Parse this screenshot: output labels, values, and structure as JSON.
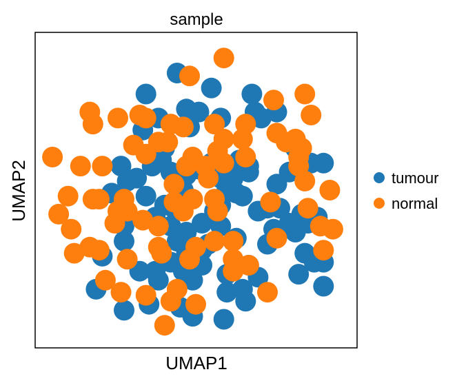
{
  "chart_data": {
    "type": "scatter",
    "title": "sample",
    "xlabel": "UMAP1",
    "ylabel": "UMAP2",
    "xlim": [
      0,
      100
    ],
    "ylim": [
      0,
      100
    ],
    "grid": false,
    "ticks": false,
    "legend_position": "right",
    "series": [
      {
        "name": "tumour",
        "color": "#1f77b4",
        "points": [
          [
            34,
            82
          ],
          [
            44,
            89
          ],
          [
            33,
            70
          ],
          [
            55,
            84
          ],
          [
            48,
            71
          ],
          [
            47,
            77
          ],
          [
            51,
            76
          ],
          [
            38,
            74
          ],
          [
            58,
            74
          ],
          [
            68,
            82
          ],
          [
            69,
            76
          ],
          [
            71,
            74
          ],
          [
            76,
            76
          ],
          [
            26,
            58
          ],
          [
            28,
            53
          ],
          [
            23,
            49
          ],
          [
            39,
            60
          ],
          [
            40,
            64
          ],
          [
            36,
            58
          ],
          [
            42,
            56
          ],
          [
            51,
            57
          ],
          [
            55,
            59
          ],
          [
            47,
            55
          ],
          [
            58,
            54
          ],
          [
            67,
            58
          ],
          [
            62,
            54
          ],
          [
            64,
            60
          ],
          [
            76,
            52
          ],
          [
            80,
            56
          ],
          [
            82,
            64
          ],
          [
            87,
            59
          ],
          [
            91,
            59
          ],
          [
            89,
            41
          ],
          [
            40,
            45
          ],
          [
            37,
            41
          ],
          [
            42,
            38
          ],
          [
            43,
            44
          ],
          [
            34,
            48
          ],
          [
            31,
            54
          ],
          [
            46,
            50
          ],
          [
            27,
            38
          ],
          [
            27,
            33
          ],
          [
            20,
            28
          ],
          [
            42,
            26
          ],
          [
            47,
            29
          ],
          [
            44,
            33
          ],
          [
            47,
            36
          ],
          [
            52,
            39
          ],
          [
            54,
            32
          ],
          [
            56,
            43
          ],
          [
            58,
            38
          ],
          [
            58,
            45
          ],
          [
            63,
            34
          ],
          [
            70,
            43
          ],
          [
            73,
            44
          ],
          [
            75,
            37
          ],
          [
            60,
            51
          ],
          [
            63,
            49
          ],
          [
            67,
            56
          ],
          [
            65,
            48
          ],
          [
            52,
            25
          ],
          [
            49,
            20
          ],
          [
            46,
            23
          ],
          [
            60,
            22
          ],
          [
            65,
            17
          ],
          [
            67,
            25
          ],
          [
            70,
            21
          ],
          [
            73,
            32
          ],
          [
            77,
            44
          ],
          [
            80,
            39
          ],
          [
            84,
            42
          ],
          [
            82,
            36
          ],
          [
            86,
            39
          ],
          [
            85,
            29
          ],
          [
            83,
            22
          ],
          [
            88,
            26
          ],
          [
            91,
            26
          ],
          [
            91,
            18
          ],
          [
            45,
            11
          ],
          [
            49,
            8
          ],
          [
            59,
            7
          ],
          [
            66,
            13
          ],
          [
            60,
            16
          ],
          [
            52,
            30
          ],
          [
            18,
            17
          ],
          [
            35,
            12
          ],
          [
            32,
            23
          ],
          [
            37,
            23
          ],
          [
            38,
            20
          ],
          [
            27,
            10
          ],
          [
            45,
            50
          ],
          [
            43,
            44
          ]
        ]
      },
      {
        "name": "normal",
        "color": "#ff7f0e",
        "points": [
          [
            48,
            88
          ],
          [
            59,
            94
          ],
          [
            85,
            82
          ],
          [
            87,
            75
          ],
          [
            66,
            72
          ],
          [
            56,
            72
          ],
          [
            59,
            67
          ],
          [
            65,
            67
          ],
          [
            66,
            61
          ],
          [
            76,
            69
          ],
          [
            79,
            66
          ],
          [
            83,
            61
          ],
          [
            17,
            72
          ],
          [
            25,
            74
          ],
          [
            32,
            75
          ],
          [
            34,
            74
          ],
          [
            42,
            72
          ],
          [
            46,
            71
          ],
          [
            30,
            65
          ],
          [
            38,
            66
          ],
          [
            34,
            62
          ],
          [
            47,
            58
          ],
          [
            49,
            61
          ],
          [
            53,
            58
          ],
          [
            54,
            54
          ],
          [
            43,
            52
          ],
          [
            49,
            47
          ],
          [
            4,
            61
          ],
          [
            13,
            58
          ],
          [
            20,
            58
          ],
          [
            27,
            47
          ],
          [
            25,
            43
          ],
          [
            17,
            47
          ],
          [
            9,
            48
          ],
          [
            6,
            42
          ],
          [
            10,
            37
          ],
          [
            11,
            29
          ],
          [
            16,
            31
          ],
          [
            38,
            31
          ],
          [
            39,
            29
          ],
          [
            38,
            38
          ],
          [
            57,
            43
          ],
          [
            56,
            33
          ],
          [
            62,
            33
          ],
          [
            62,
            23
          ],
          [
            67,
            25
          ],
          [
            73,
            16
          ],
          [
            76,
            34
          ],
          [
            86,
            44
          ],
          [
            90,
            38
          ],
          [
            94,
            37
          ],
          [
            83,
            58
          ],
          [
            85,
            53
          ],
          [
            59,
            59
          ],
          [
            57,
            63
          ],
          [
            16,
            76
          ],
          [
            41,
            66
          ],
          [
            48,
            27
          ],
          [
            50,
            31
          ],
          [
            44,
            17
          ],
          [
            50,
            12
          ],
          [
            34,
            15
          ],
          [
            26,
            16
          ],
          [
            21,
            20
          ],
          [
            28,
            27
          ],
          [
            33,
            40
          ],
          [
            24,
            39
          ],
          [
            28,
            43
          ],
          [
            19,
            30
          ],
          [
            40,
            5
          ],
          [
            42,
            13
          ],
          [
            75,
            80
          ],
          [
            19,
            47
          ],
          [
            82,
            67
          ],
          [
            84,
            64
          ],
          [
            93,
            50
          ],
          [
            56,
            47
          ],
          [
            46,
            43
          ],
          [
            43,
            46
          ],
          [
            91,
            30
          ],
          [
            74,
            46
          ],
          [
            62,
            27
          ]
        ]
      }
    ]
  }
}
